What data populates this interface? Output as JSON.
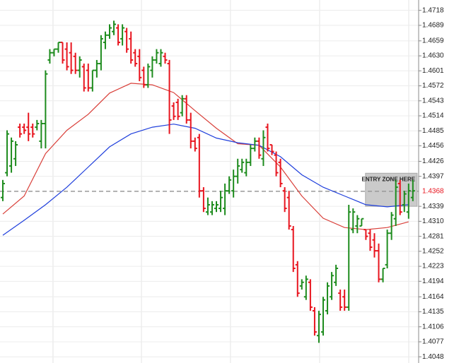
{
  "chart_data": {
    "type": "ohlc",
    "up_color": "#1e8c1e",
    "down_color": "#e8141e",
    "open": [
      1.4356,
      1.4404,
      1.4417,
      1.4431,
      1.4492,
      1.4492,
      1.4492,
      1.4492,
      1.4492,
      1.4465,
      1.4499,
      1.4622,
      1.4636,
      1.4643,
      1.4656,
      1.4643,
      1.4636,
      1.4629,
      1.4602,
      1.4609,
      1.4602,
      1.4568,
      1.4602,
      1.4615,
      1.4656,
      1.467,
      1.4677,
      1.4684,
      1.4663,
      1.4677,
      1.4663,
      1.4636,
      1.4629,
      1.4602,
      1.4574,
      1.4602,
      1.4622,
      1.4615,
      1.4629,
      1.4615,
      1.4533,
      1.454,
      1.452,
      1.4547,
      1.4506,
      1.4465,
      1.4472,
      1.4369,
      1.4328,
      1.4328,
      1.4335,
      1.4335,
      1.4335,
      1.4369,
      1.4369,
      1.4397,
      1.441,
      1.4404,
      1.4424,
      1.4451,
      1.4465,
      1.4431,
      1.4492,
      1.4458,
      1.4438,
      1.4424,
      1.4369,
      1.4356,
      1.4294,
      1.4226,
      1.4185,
      1.4164,
      1.4192,
      1.4137,
      1.4089,
      1.4096,
      1.4137,
      1.4164,
      1.4192,
      1.4171,
      1.4164,
      1.4144,
      1.4294,
      1.4301,
      1.4301,
      1.4294,
      1.4287,
      1.4274,
      1.4253,
      1.4198,
      1.4226,
      1.4287,
      1.4315,
      1.4383,
      1.4342,
      1.4328,
      1.4356
    ],
    "high": [
      1.439,
      1.4486,
      1.4472,
      1.4465,
      1.4499,
      1.4499,
      1.452,
      1.4499,
      1.4506,
      1.4506,
      1.4602,
      1.4643,
      1.4643,
      1.4656,
      1.4656,
      1.4656,
      1.4656,
      1.4636,
      1.4629,
      1.4615,
      1.4615,
      1.4602,
      1.4622,
      1.467,
      1.4677,
      1.4691,
      1.4698,
      1.4691,
      1.4691,
      1.4684,
      1.4677,
      1.4643,
      1.4643,
      1.4609,
      1.4615,
      1.4629,
      1.4643,
      1.4643,
      1.4636,
      1.4622,
      1.454,
      1.4547,
      1.4554,
      1.4554,
      1.452,
      1.4472,
      1.4479,
      1.4376,
      1.4356,
      1.4349,
      1.4349,
      1.4369,
      1.4383,
      1.4397,
      1.441,
      1.4431,
      1.4431,
      1.4431,
      1.4458,
      1.4472,
      1.4472,
      1.4486,
      1.4499,
      1.4458,
      1.4445,
      1.4431,
      1.4376,
      1.4369,
      1.4301,
      1.4233,
      1.4198,
      1.4205,
      1.4198,
      1.4144,
      1.4137,
      1.4164,
      1.4192,
      1.4212,
      1.4226,
      1.4178,
      1.4178,
      1.4342,
      1.4335,
      1.4322,
      1.4315,
      1.4294,
      1.4294,
      1.4287,
      1.4267,
      1.4219,
      1.4294,
      1.4328,
      1.439,
      1.439,
      1.4369,
      1.4383,
      1.439
    ],
    "low": [
      1.4349,
      1.4397,
      1.4404,
      1.4417,
      1.4472,
      1.4479,
      1.4465,
      1.4472,
      1.4486,
      1.4451,
      1.4451,
      1.4615,
      1.4629,
      1.4636,
      1.4615,
      1.4602,
      1.4595,
      1.4595,
      1.4588,
      1.4561,
      1.4561,
      1.4561,
      1.4588,
      1.4602,
      1.4643,
      1.4663,
      1.467,
      1.465,
      1.465,
      1.4636,
      1.4615,
      1.4609,
      1.4581,
      1.4568,
      1.4568,
      1.4588,
      1.4615,
      1.4609,
      1.4615,
      1.4479,
      1.4506,
      1.4506,
      1.4513,
      1.4499,
      1.4451,
      1.4445,
      1.4356,
      1.4328,
      1.4322,
      1.4322,
      1.4328,
      1.4328,
      1.4322,
      1.4363,
      1.4356,
      1.4383,
      1.4404,
      1.4397,
      1.4417,
      1.4445,
      1.4431,
      1.4417,
      1.4445,
      1.4438,
      1.4397,
      1.4376,
      1.4328,
      1.4294,
      1.4212,
      1.4164,
      1.4178,
      1.4158,
      1.4137,
      1.4089,
      1.4075,
      1.4089,
      1.413,
      1.4158,
      1.4185,
      1.4137,
      1.4137,
      1.4137,
      1.4287,
      1.4287,
      1.4301,
      1.4274,
      1.4253,
      1.424,
      1.4192,
      1.4192,
      1.4219,
      1.4274,
      1.4301,
      1.4322,
      1.4328,
      1.4315,
      1.4349
    ],
    "close": [
      1.4383,
      1.4479,
      1.4465,
      1.4458,
      1.4479,
      1.4486,
      1.4479,
      1.4479,
      1.4499,
      1.4499,
      1.4595,
      1.4636,
      1.4643,
      1.4656,
      1.4622,
      1.4609,
      1.4602,
      1.4602,
      1.4622,
      1.4568,
      1.4568,
      1.4602,
      1.4615,
      1.4663,
      1.467,
      1.4684,
      1.4691,
      1.4656,
      1.4684,
      1.4643,
      1.4622,
      1.4615,
      1.4588,
      1.4574,
      1.4609,
      1.4622,
      1.4636,
      1.4636,
      1.4622,
      1.4506,
      1.4513,
      1.4513,
      1.4547,
      1.4506,
      1.4465,
      1.4451,
      1.4369,
      1.4335,
      1.4342,
      1.4342,
      1.4342,
      1.4356,
      1.4369,
      1.439,
      1.4397,
      1.4417,
      1.4424,
      1.4424,
      1.4451,
      1.4465,
      1.4438,
      1.4472,
      1.4451,
      1.4445,
      1.4404,
      1.4383,
      1.4335,
      1.4301,
      1.4219,
      1.4171,
      1.4192,
      1.4198,
      1.4144,
      1.4096,
      1.413,
      1.4158,
      1.4185,
      1.4205,
      1.4219,
      1.4144,
      1.4144,
      1.4328,
      1.4328,
      1.4315,
      1.4315,
      1.4281,
      1.426,
      1.4253,
      1.4198,
      1.4219,
      1.4287,
      1.4322,
      1.4376,
      1.4328,
      1.4363,
      1.4369,
      1.4369
    ],
    "lines": [
      {
        "color": "#d9403a",
        "x": [
          0,
          5,
          10,
          15,
          20,
          25,
          30,
          35,
          40,
          45,
          50,
          55,
          60,
          65,
          70,
          75,
          80,
          85,
          90,
          95
        ],
        "values": [
          1.4324,
          1.4359,
          1.4441,
          1.4486,
          1.4517,
          1.4558,
          1.4577,
          1.4574,
          1.4559,
          1.4524,
          1.449,
          1.446,
          1.4457,
          1.4415,
          1.4359,
          1.4316,
          1.4298,
          1.4294,
          1.4298,
          1.4309
        ]
      },
      {
        "color": "#1f3fdc",
        "x": [
          0,
          5,
          10,
          15,
          20,
          25,
          30,
          35,
          40,
          45,
          50,
          55,
          60,
          65,
          70,
          75,
          80,
          85,
          90,
          95
        ],
        "values": [
          1.4283,
          1.4312,
          1.4342,
          1.4376,
          1.4415,
          1.4454,
          1.4479,
          1.4492,
          1.4498,
          1.449,
          1.4471,
          1.4462,
          1.4457,
          1.4435,
          1.44,
          1.4376,
          1.4359,
          1.4342,
          1.4338,
          1.4342
        ]
      }
    ],
    "xlim": [
      -0.66,
      97.35
    ],
    "xgrid": [
      11.75,
      32.45,
      53.3,
      74.17,
      95.03
    ],
    "ylim": [
      1.4036,
      1.4738
    ],
    "yticks": [
      1.4718,
      1.4689,
      1.4659,
      {
        "value": 1.463,
        "label": "1.4630"
      },
      1.4601,
      1.4572,
      1.4543,
      1.4514,
      1.4485,
      1.4456,
      1.4426,
      1.4397,
      1.4339,
      {
        "value": 1.431,
        "label": "1.4310"
      },
      1.4281,
      1.4252,
      1.4223,
      1.4194,
      1.4164,
      1.4135,
      1.4106,
      1.4077,
      1.4048
    ],
    "grid": true,
    "current_price": 1.4368,
    "current_color": "#e8141e",
    "zone": {
      "label": "ENTRY ZONE HERE",
      "xlim": [
        84.9,
        97.0
      ],
      "ylim": [
        1.4339,
        1.4403
      ]
    }
  }
}
